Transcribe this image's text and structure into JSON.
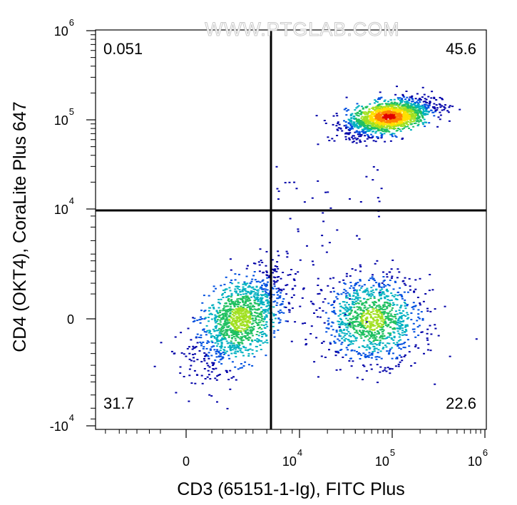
{
  "chart_data": {
    "type": "scatter",
    "title": "",
    "watermark": "WWW.PTGLAB.COM",
    "xlabel": "CD3 (65151-1-Ig), FITC Plus",
    "ylabel": "CD4 (OKT4), CoraLite Plus 647",
    "x_scale": "biexponential",
    "y_scale": "biexponential",
    "x_ticks": [
      {
        "base": "0",
        "exp": ""
      },
      {
        "base": "10",
        "exp": "4"
      },
      {
        "base": "10",
        "exp": "5"
      },
      {
        "base": "10",
        "exp": "6"
      }
    ],
    "y_ticks": [
      {
        "base": "10",
        "exp": "6"
      },
      {
        "base": "10",
        "exp": "5"
      },
      {
        "base": "10",
        "exp": "4"
      },
      {
        "base": "0",
        "exp": ""
      },
      {
        "base": "-10",
        "exp": "4"
      }
    ],
    "gates": {
      "x_threshold": "~2000",
      "y_threshold": 10000
    },
    "quadrants": [
      {
        "name": "CD3- CD4+",
        "position": "top-left",
        "percent": "0.051"
      },
      {
        "name": "CD3+ CD4+",
        "position": "top-right",
        "percent": "45.6"
      },
      {
        "name": "CD3- CD4-",
        "position": "bottom-left",
        "percent": "31.7"
      },
      {
        "name": "CD3+ CD4-",
        "position": "bottom-right",
        "percent": "22.6"
      }
    ],
    "populations": [
      {
        "name": "CD3- CD4-",
        "x_center": 500,
        "y_center": 0,
        "share": 0.317
      },
      {
        "name": "CD3+ CD4+",
        "x_center": 90000,
        "y_center": 110000,
        "share": 0.456
      },
      {
        "name": "CD3+ CD4-",
        "x_center": 60000,
        "y_center": 0,
        "share": 0.226
      }
    ],
    "density_colors": [
      "#0000a8",
      "#0050e0",
      "#00b0c0",
      "#20c060",
      "#a0e020",
      "#ffe000",
      "#ff8000",
      "#e00000"
    ],
    "grid": false,
    "legend": "none"
  }
}
